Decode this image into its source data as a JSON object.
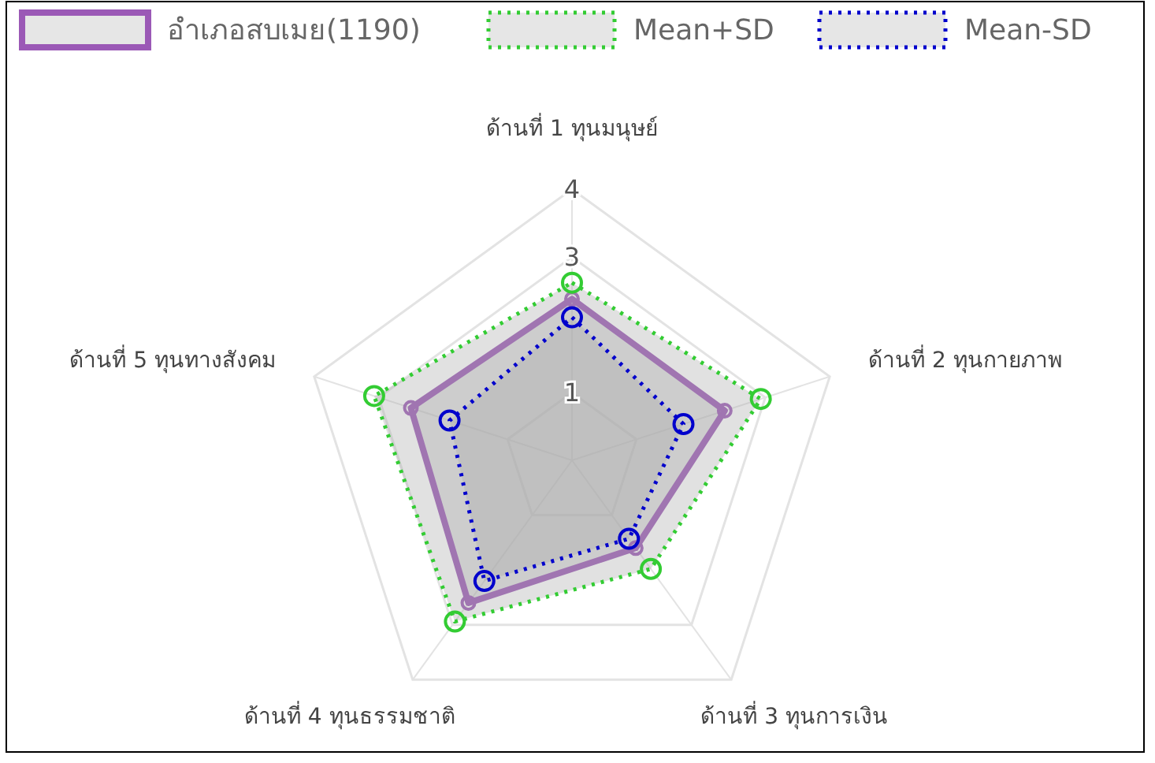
{
  "chart_data": {
    "type": "radar",
    "categories": [
      "ด้านที่ 1 ทุนมนุษย์",
      "ด้านที่ 2 ทุนกายภาพ",
      "ด้านที่ 3 ทุนการเงิน",
      "ด้านที่ 4 ทุนธรรมชาติ",
      "ด้านที่ 5 ทุนทางสังคม"
    ],
    "ylim": [
      0,
      4
    ],
    "yticks": [
      1,
      3,
      4
    ],
    "legend": "top",
    "marker": "circle",
    "series": [
      {
        "name": "อำเภอสบเมย(1190)",
        "color": "#9b59b6",
        "line_style": "solid",
        "values": [
          2.38,
          2.37,
          1.6,
          2.6,
          2.5
        ]
      },
      {
        "name": "Mean+SD",
        "color": "#33cc33",
        "line_style": "dotted",
        "values": [
          2.62,
          2.93,
          1.98,
          2.94,
          3.07
        ]
      },
      {
        "name": "Mean-SD",
        "color": "#0000cc",
        "line_style": "dotted",
        "values": [
          2.11,
          1.73,
          1.43,
          2.2,
          1.9
        ]
      }
    ]
  }
}
